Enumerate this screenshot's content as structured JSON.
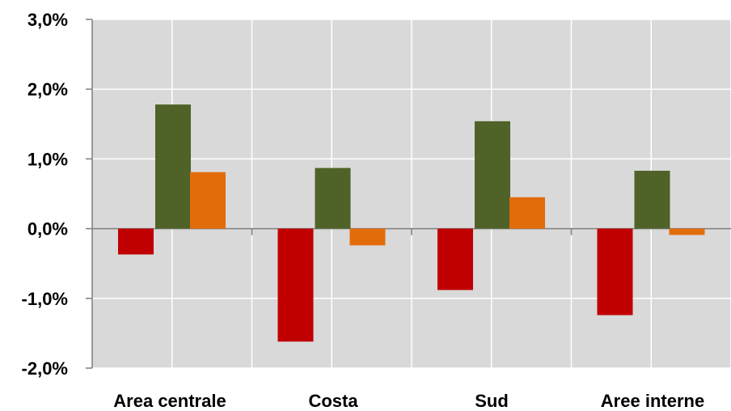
{
  "chart_data": {
    "type": "bar",
    "title": "",
    "xlabel": "",
    "ylabel": "",
    "categories": [
      "Area centrale",
      "Costa",
      "Sud",
      "Aree interne"
    ],
    "series": [
      {
        "color": "#c00000",
        "values": [
          -0.37,
          -1.62,
          -0.88,
          -1.24
        ]
      },
      {
        "color": "#4f6228",
        "values": [
          1.78,
          0.87,
          1.54,
          0.83
        ]
      },
      {
        "color": "#e36c0a",
        "values": [
          0.81,
          -0.24,
          0.45,
          -0.09
        ]
      }
    ],
    "ylim": [
      -2.0,
      3.0
    ],
    "yticks": [
      3.0,
      2.0,
      1.0,
      0.0,
      -1.0,
      -2.0
    ],
    "ytick_labels": [
      "3,0%",
      "2,0%",
      "1,0%",
      "0,0%",
      "-1,0%",
      "-2,0%"
    ],
    "grid": true,
    "legend": "none",
    "plot_background": "#d9d9d9",
    "grid_color": "#ffffff"
  }
}
